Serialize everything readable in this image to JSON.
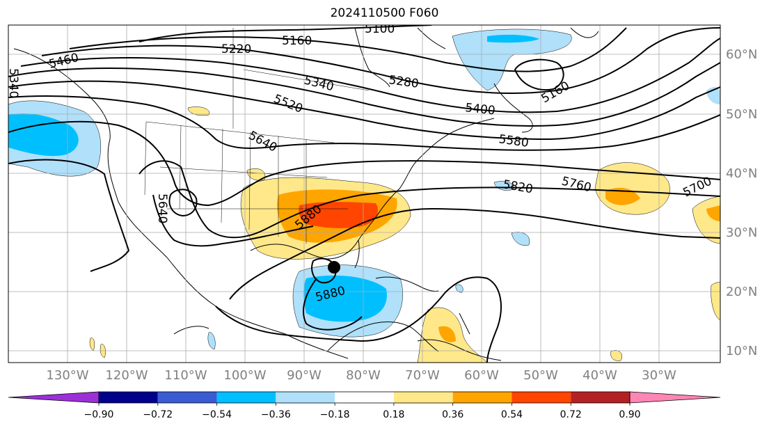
{
  "title": "2024110500 F060",
  "lon_labels": [
    "130°W",
    "120°W",
    "110°W",
    "100°W",
    "90°W",
    "80°W",
    "70°W",
    "60°W",
    "50°W",
    "40°W",
    "30°W"
  ],
  "lat_labels": [
    "60°N",
    "50°N",
    "40°N",
    "30°N",
    "20°N",
    "10°N"
  ],
  "contour_labels": [
    "5100",
    "5160",
    "5220",
    "5280",
    "5340",
    "5400",
    "5460",
    "5520",
    "5580",
    "5640",
    "5700",
    "5760",
    "5820",
    "5880",
    "5880",
    "5160",
    "5340"
  ],
  "colorbar": {
    "ticks": [
      "−0.90",
      "−0.72",
      "−0.54",
      "−0.36",
      "−0.18",
      "0.18",
      "0.36",
      "0.54",
      "0.72",
      "0.90"
    ],
    "colors": [
      "#9b30d9",
      "#00008b",
      "#3a5bd1",
      "#00bfff",
      "#b0e0fa",
      "#ffffff",
      "#ffe88a",
      "#ffa500",
      "#ff4500",
      "#b22222",
      "#ff85b4"
    ]
  },
  "storm_marker": "storm-center"
}
